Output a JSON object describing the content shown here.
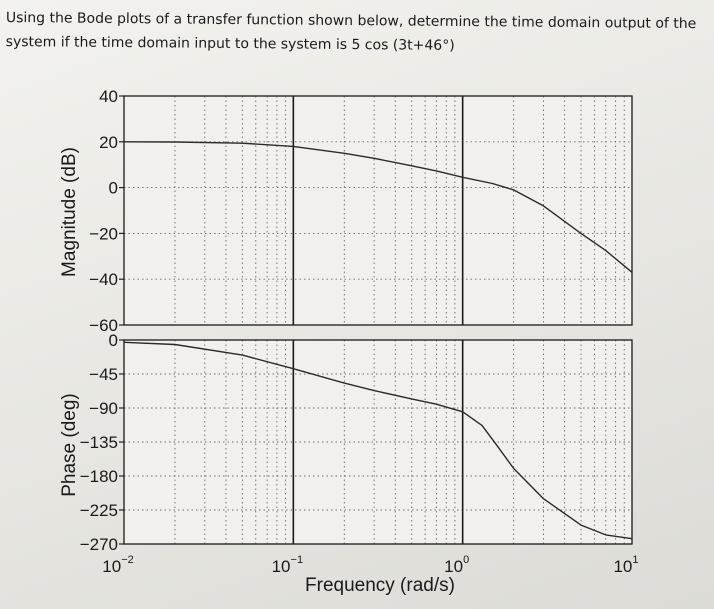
{
  "problem": {
    "line1": "Using the Bode plots of a transfer function shown below, determine the time domain output of the",
    "line2": "system if the time domain input to the system is 5 cos (3t+46°)"
  },
  "chart_data": [
    {
      "type": "line",
      "name": "magnitude",
      "ylabel": "Magnitude (dB)",
      "xscale": "log",
      "xlim": [
        0.01,
        10
      ],
      "ylim": [
        -60,
        40
      ],
      "yticks": [
        40,
        20,
        0,
        -20,
        -40,
        -60
      ],
      "grid": true,
      "x": [
        0.01,
        0.02,
        0.05,
        0.1,
        0.2,
        0.3,
        0.5,
        0.7,
        1,
        1.5,
        2,
        3,
        5,
        7,
        10
      ],
      "y": [
        20,
        19.9,
        19.4,
        18,
        15,
        12.8,
        9.5,
        7.3,
        4.5,
        1.8,
        -1,
        -8,
        -20,
        -27.5,
        -37
      ]
    },
    {
      "type": "line",
      "name": "phase",
      "ylabel": "Phase (deg)",
      "xlabel": "Frequency (rad/s)",
      "xscale": "log",
      "xlim": [
        0.01,
        10
      ],
      "ylim": [
        -270,
        0
      ],
      "yticks": [
        0,
        -45,
        -90,
        -135,
        -180,
        -225,
        -270
      ],
      "grid": true,
      "x": [
        0.01,
        0.02,
        0.05,
        0.1,
        0.2,
        0.3,
        0.5,
        0.7,
        1,
        1.3,
        1.6,
        2,
        3,
        5,
        7,
        10
      ],
      "y": [
        -3,
        -6,
        -20,
        -38,
        -57,
        -67,
        -78,
        -85,
        -95,
        -113,
        -140,
        -170,
        -210,
        -245,
        -258,
        -263
      ],
      "xtick_labels": [
        {
          "value": 0.01,
          "base": "10",
          "exp": "-2"
        },
        {
          "value": 0.1,
          "base": "10",
          "exp": "-1"
        },
        {
          "value": 1,
          "base": "10",
          "exp": "0"
        },
        {
          "value": 10,
          "base": "10",
          "exp": "1"
        }
      ]
    }
  ]
}
